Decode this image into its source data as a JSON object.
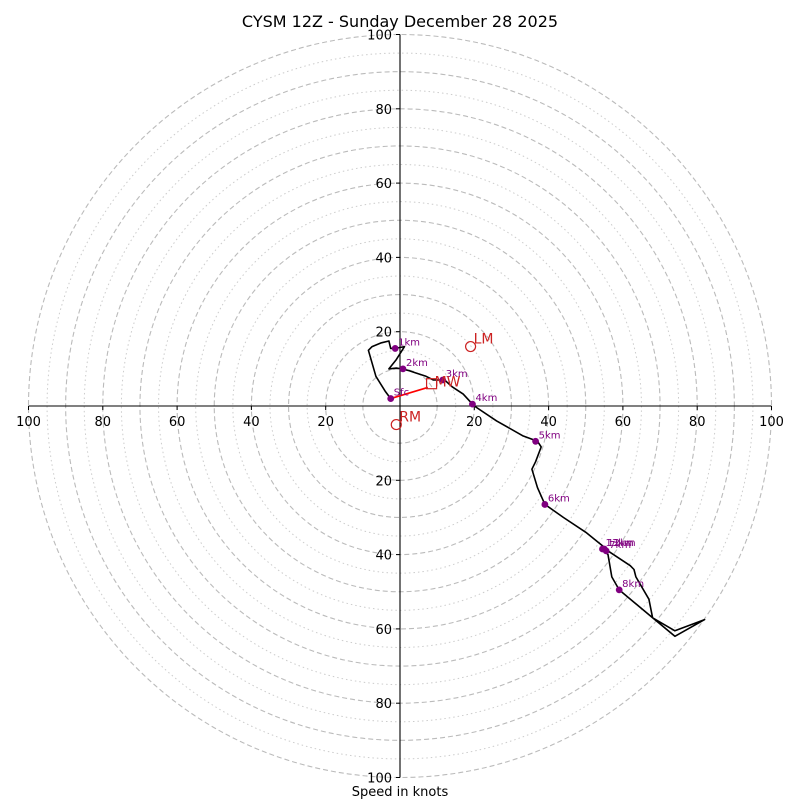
{
  "chart_data": {
    "type": "hodograph",
    "title": "CYSM 12Z - Sunday December 28 2025",
    "xlabel": "Speed in knots",
    "range": [
      -100,
      100
    ],
    "dashed_rings": [
      10,
      20,
      30,
      40,
      50,
      60,
      70,
      80,
      90,
      100
    ],
    "dotted_rings": [
      15,
      25,
      35,
      45,
      55,
      65,
      75,
      85,
      95
    ],
    "ticks_x": [
      {
        "value": -100,
        "label": "100"
      },
      {
        "value": -80,
        "label": "80"
      },
      {
        "value": -60,
        "label": "60"
      },
      {
        "value": -40,
        "label": "40"
      },
      {
        "value": -20,
        "label": "20"
      },
      {
        "value": 20,
        "label": "20"
      },
      {
        "value": 40,
        "label": "40"
      },
      {
        "value": 60,
        "label": "60"
      },
      {
        "value": 80,
        "label": "80"
      },
      {
        "value": 100,
        "label": "100"
      }
    ],
    "ticks_y": [
      {
        "value": 100,
        "label": "100"
      },
      {
        "value": 80,
        "label": "80"
      },
      {
        "value": 60,
        "label": "60"
      },
      {
        "value": 40,
        "label": "40"
      },
      {
        "value": 20,
        "label": "20"
      },
      {
        "value": -20,
        "label": "20"
      },
      {
        "value": -40,
        "label": "40"
      },
      {
        "value": -60,
        "label": "60"
      },
      {
        "value": -80,
        "label": "80"
      },
      {
        "value": -100,
        "label": "100"
      }
    ],
    "hodograph_line": [
      [
        -2.5,
        2
      ],
      [
        -4,
        4
      ],
      [
        -6.5,
        8
      ],
      [
        -8.5,
        15
      ],
      [
        -7.5,
        16
      ],
      [
        -5,
        17
      ],
      [
        -3,
        17.5
      ],
      [
        -2.5,
        15.5
      ],
      [
        -1.3,
        15.5
      ],
      [
        1.2,
        16
      ],
      [
        -1,
        12.5
      ],
      [
        -3,
        10
      ],
      [
        -1,
        10.2
      ],
      [
        0.5,
        10
      ],
      [
        2.5,
        9.5
      ],
      [
        4.5,
        8.8
      ],
      [
        7,
        8
      ],
      [
        9,
        7
      ],
      [
        12,
        7
      ],
      [
        14,
        5.2
      ],
      [
        17,
        3.2
      ],
      [
        19.5,
        0.5
      ],
      [
        20,
        0
      ],
      [
        26,
        -4
      ],
      [
        33,
        -8
      ],
      [
        37,
        -9.5
      ],
      [
        38,
        -11
      ],
      [
        36.5,
        -15
      ],
      [
        35.5,
        -17
      ],
      [
        37,
        -22
      ],
      [
        39,
        -26.5
      ],
      [
        44,
        -30
      ],
      [
        50,
        -34
      ],
      [
        55,
        -38
      ],
      [
        56,
        -39
      ],
      [
        62,
        -43
      ],
      [
        63,
        -44
      ],
      [
        63.5,
        -46
      ],
      [
        67,
        -52
      ],
      [
        68,
        -57
      ],
      [
        74,
        -62
      ],
      [
        82,
        -57.5
      ],
      [
        74,
        -60.5
      ],
      [
        68,
        -57
      ],
      [
        59,
        -49.5
      ],
      [
        57,
        -46
      ],
      [
        56,
        -40
      ],
      [
        54.5,
        -38.5
      ]
    ],
    "markers": [
      {
        "label": "Sfc",
        "u": -2.5,
        "v": 2
      },
      {
        "label": "1km",
        "u": -1.3,
        "v": 15.5
      },
      {
        "label": "2km",
        "u": 0.8,
        "v": 10
      },
      {
        "label": "3km",
        "u": 11.5,
        "v": 7
      },
      {
        "label": "4km",
        "u": 19.5,
        "v": 0.5
      },
      {
        "label": "5km",
        "u": 36.5,
        "v": -9.5
      },
      {
        "label": "6km",
        "u": 39,
        "v": -26.5
      },
      {
        "label": "7km",
        "u": 55.5,
        "v": -39
      },
      {
        "label": "8km",
        "u": 59,
        "v": -49.5
      },
      {
        "label": "12km",
        "u": 55,
        "v": -38.5
      },
      {
        "label": "13km",
        "u": 54.5,
        "v": -38.5
      }
    ],
    "shear_vector": {
      "from": [
        -2.5,
        2
      ],
      "to": [
        7.5,
        5
      ],
      "color": "#ff0000"
    },
    "storm_motion": {
      "MW": {
        "label": "MW",
        "u": 8.5,
        "v": 6
      },
      "LM": {
        "label": "LM",
        "u": 19,
        "v": 16
      },
      "RM": {
        "label": "RM",
        "u": -1,
        "v": -5
      }
    },
    "colors": {
      "line": "#000000",
      "marker": "#800080",
      "storm": "#cc2222",
      "rings": "#bbbbbb",
      "axes": "#000000"
    }
  }
}
